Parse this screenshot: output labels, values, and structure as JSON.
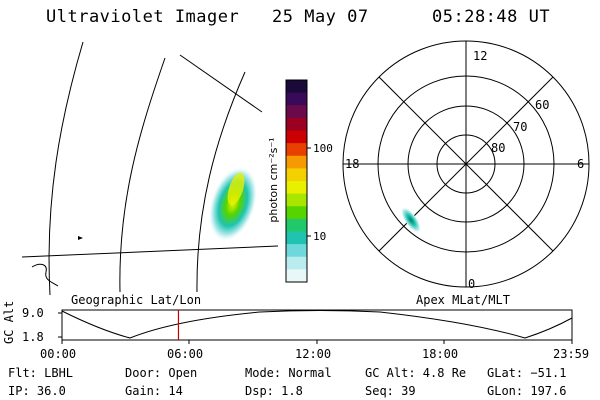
{
  "header": {
    "instrument": "Ultraviolet Imager",
    "date": "25 May 07",
    "time": "05:28:48 UT"
  },
  "geo_panel": {
    "label": "Geographic Lat/Lon"
  },
  "colorbar": {
    "unit_label": "photon cm⁻²s⁻¹",
    "ticks": [
      "100",
      "10"
    ],
    "colors": [
      "#1a0a3a",
      "#3a0a5a",
      "#6a0a4a",
      "#990022",
      "#cc0000",
      "#e84000",
      "#f59a00",
      "#f5d000",
      "#e8f000",
      "#a8e600",
      "#55d400",
      "#22c96a",
      "#1fc3b0",
      "#6fd8dc",
      "#b8ecee",
      "#e8f8f8"
    ]
  },
  "polar_panel": {
    "label": "Apex MLat/MLT",
    "mlt_labels": [
      "12",
      "18",
      "6",
      "0"
    ],
    "mlat_labels": [
      "60",
      "70",
      "80"
    ]
  },
  "altitude_plot": {
    "ylabel": "GC Alt",
    "yticks": [
      "9.0",
      "1.8"
    ],
    "xticks": [
      "00:00",
      "06:00",
      "12:00",
      "18:00",
      "23:59"
    ],
    "current_time_hours": 5.48,
    "marker_color": "#cc0000"
  },
  "info": {
    "flt": "Flt: LBHL",
    "ip": "IP: 36.0",
    "door": "Door: Open",
    "gain": "Gain: 14",
    "mode": "Mode: Normal",
    "dsp": "Dsp:    1.8",
    "gc_alt": "GC Alt: 4.8 Re",
    "seq": "Seq: 39",
    "glat": "GLat: −51.1",
    "glon": "GLon: 197.6"
  }
}
